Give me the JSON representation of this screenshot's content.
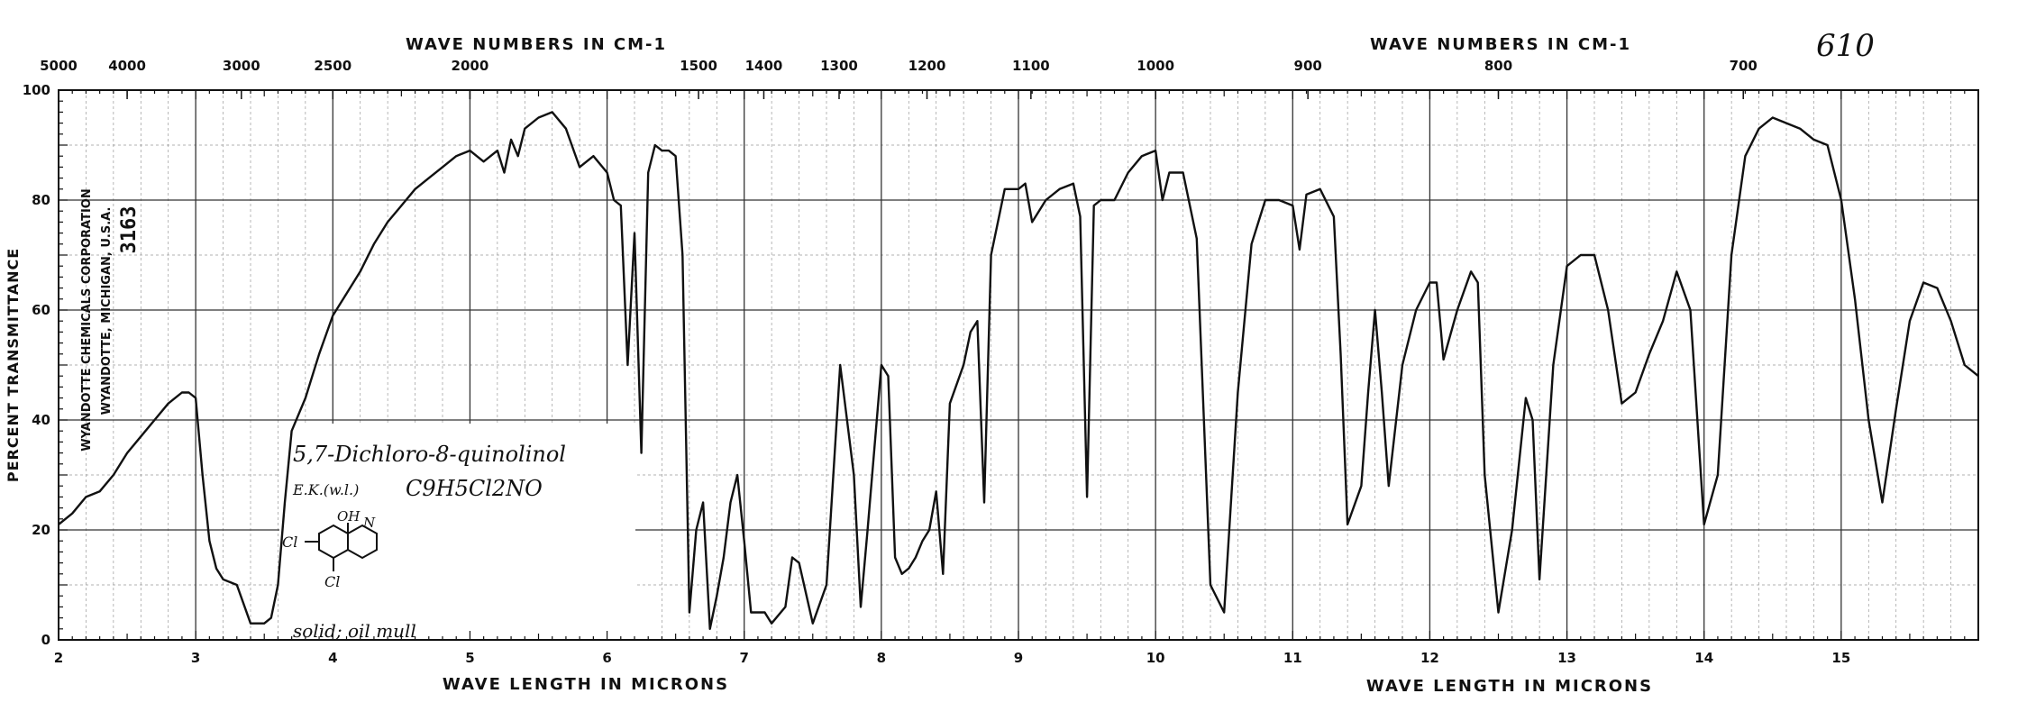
{
  "page": {
    "sheet_number": "610",
    "stamp": {
      "company": "WYANDOTTE CHEMICALS CORPORATION",
      "location": "WYANDOTTE, MICHIGAN, U.S.A.",
      "spectrum_number": "3163"
    },
    "annotation": {
      "compound": "5,7-Dichloro-8-quinolinol",
      "source": "E.K.(w.l.)",
      "formula": "C9H5Cl2NO",
      "structure_oh": "OH",
      "structure_n": "N",
      "structure_cl_left": "Cl",
      "structure_cl_bottom": "Cl",
      "sample_state": "solid; oil mull"
    }
  },
  "chart_data": {
    "type": "line",
    "title": "",
    "top_axis_label_left": "WAVE NUMBERS IN CM-1",
    "top_axis_label_right": "WAVE NUMBERS IN CM-1",
    "xlabel_left": "WAVE LENGTH IN MICRONS",
    "xlabel_right": "WAVE LENGTH IN MICRONS",
    "ylabel": "PERCENT TRANSMITTANCE",
    "xlim": [
      2,
      16
    ],
    "ylim": [
      0,
      100
    ],
    "grid": true,
    "x_ticks": [
      "2",
      "3",
      "4",
      "5",
      "6",
      "7",
      "8",
      "9",
      "10",
      "11",
      "12",
      "13",
      "14",
      "15"
    ],
    "y_ticks": [
      "0",
      "20",
      "40",
      "60",
      "80",
      "100"
    ],
    "top_ticks": [
      {
        "label": "5000",
        "x": 2.0
      },
      {
        "label": "4000",
        "x": 2.5
      },
      {
        "label": "3000",
        "x": 3.333
      },
      {
        "label": "2500",
        "x": 4.0
      },
      {
        "label": "2000",
        "x": 5.0
      },
      {
        "label": "1500",
        "x": 6.667
      },
      {
        "label": "1400",
        "x": 7.143
      },
      {
        "label": "1300",
        "x": 7.692
      },
      {
        "label": "1200",
        "x": 8.333
      },
      {
        "label": "1100",
        "x": 9.091
      },
      {
        "label": "1000",
        "x": 10.0
      },
      {
        "label": "900",
        "x": 11.111
      },
      {
        "label": "800",
        "x": 12.5
      },
      {
        "label": "700",
        "x": 14.286
      }
    ],
    "series": [
      {
        "x": [
          2.0,
          2.1,
          2.2,
          2.3,
          2.4,
          2.5,
          2.6,
          2.7,
          2.8,
          2.9,
          2.95,
          3.0,
          3.05,
          3.1,
          3.15,
          3.2,
          3.3,
          3.4,
          3.5,
          3.55,
          3.6,
          3.65,
          3.7,
          3.8,
          3.9,
          4.0,
          4.1,
          4.2,
          4.3,
          4.4,
          4.5,
          4.6,
          4.7,
          4.8,
          4.9,
          5.0,
          5.1,
          5.2,
          5.25,
          5.3,
          5.35,
          5.4,
          5.5,
          5.6,
          5.7,
          5.8,
          5.9,
          6.0,
          6.05,
          6.1,
          6.15,
          6.2,
          6.25,
          6.3,
          6.35,
          6.4,
          6.45,
          6.5,
          6.55,
          6.6,
          6.65,
          6.7,
          6.75,
          6.8,
          6.85,
          6.9,
          6.95,
          7.0,
          7.05,
          7.1,
          7.15,
          7.2,
          7.3,
          7.35,
          7.4,
          7.5,
          7.6,
          7.65,
          7.7,
          7.8,
          7.85,
          7.9,
          8.0,
          8.05,
          8.1,
          8.15,
          8.2,
          8.25,
          8.3,
          8.35,
          8.4,
          8.45,
          8.5,
          8.6,
          8.65,
          8.7,
          8.75,
          8.8,
          8.9,
          9.0,
          9.05,
          9.1,
          9.2,
          9.3,
          9.4,
          9.45,
          9.5,
          9.55,
          9.6,
          9.7,
          9.8,
          9.9,
          10.0,
          10.05,
          10.1,
          10.2,
          10.3,
          10.4,
          10.5,
          10.6,
          10.7,
          10.8,
          10.9,
          11.0,
          11.05,
          11.1,
          11.2,
          11.3,
          11.35,
          11.4,
          11.5,
          11.55,
          11.6,
          11.65,
          11.7,
          11.8,
          11.9,
          12.0,
          12.05,
          12.1,
          12.2,
          12.3,
          12.35,
          12.4,
          12.5,
          12.6,
          12.7,
          12.75,
          12.8,
          12.9,
          13.0,
          13.1,
          13.2,
          13.3,
          13.4,
          13.5,
          13.6,
          13.7,
          13.8,
          13.9,
          14.0,
          14.1,
          14.2,
          14.3,
          14.4,
          14.5,
          14.6,
          14.7,
          14.8,
          14.9,
          15.0,
          15.1,
          15.2,
          15.3,
          15.4,
          15.5,
          15.6,
          15.7,
          15.8,
          15.9,
          16.0
        ],
        "values": [
          21,
          23,
          26,
          27,
          30,
          34,
          37,
          40,
          43,
          45,
          45,
          44,
          30,
          18,
          13,
          11,
          10,
          3,
          3,
          4,
          10,
          25,
          38,
          44,
          52,
          59,
          63,
          67,
          72,
          76,
          79,
          82,
          84,
          86,
          88,
          89,
          87,
          89,
          85,
          91,
          88,
          93,
          95,
          96,
          93,
          86,
          88,
          85,
          80,
          79,
          50,
          74,
          34,
          85,
          90,
          89,
          89,
          88,
          70,
          5,
          20,
          25,
          2,
          8,
          15,
          25,
          30,
          18,
          5,
          5,
          5,
          3,
          6,
          15,
          14,
          3,
          10,
          30,
          50,
          30,
          6,
          20,
          50,
          48,
          15,
          12,
          13,
          15,
          18,
          20,
          27,
          12,
          43,
          50,
          56,
          58,
          25,
          70,
          82,
          82,
          83,
          76,
          80,
          82,
          83,
          77,
          26,
          79,
          80,
          80,
          85,
          88,
          89,
          80,
          85,
          85,
          73,
          10,
          5,
          45,
          72,
          80,
          80,
          79,
          71,
          81,
          82,
          77,
          52,
          21,
          28,
          45,
          60,
          45,
          28,
          50,
          60,
          65,
          65,
          51,
          60,
          67,
          65,
          30,
          5,
          20,
          44,
          40,
          11,
          50,
          68,
          70,
          70,
          60,
          43,
          45,
          52,
          58,
          67,
          60,
          21,
          30,
          70,
          88,
          93,
          95,
          94,
          93,
          91,
          90,
          80,
          62,
          40,
          25,
          42,
          58,
          65,
          64,
          58,
          50,
          48
        ]
      }
    ]
  }
}
